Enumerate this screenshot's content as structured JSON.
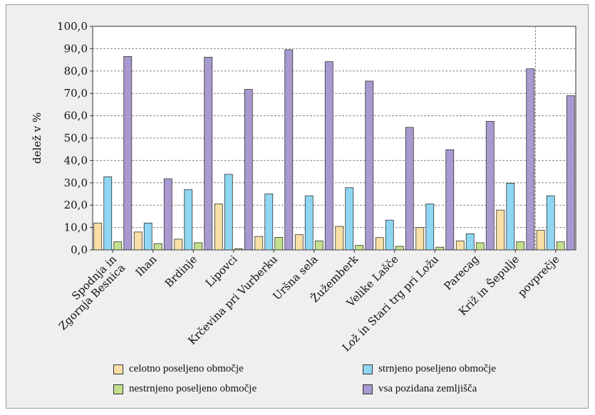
{
  "chart_data": {
    "type": "bar",
    "title": "",
    "xlabel": "",
    "ylabel": "delež v %",
    "ylim": [
      0,
      100
    ],
    "yticks": [
      "0,0",
      "10,0",
      "20,0",
      "30,0",
      "40,0",
      "50,0",
      "60,0",
      "70,0",
      "80,0",
      "90,0",
      "100,0"
    ],
    "grid": true,
    "legend_position": "bottom",
    "categories": [
      "Spodnja in\nZgornja Besnica",
      "Ihan",
      "Brdinje",
      "Lipovci",
      "Krčevina pri Vurberku",
      "Uršna sela",
      "Žužemberk",
      "Velike Lašče",
      "Lož in Stari trg pri Ložu",
      "Parecag",
      "Križ in Šepulje",
      "povprečje"
    ],
    "series": [
      {
        "name": "celotno poseljeno območje",
        "color": "#f7dfa6",
        "values": [
          12.0,
          8.0,
          4.8,
          20.5,
          6.0,
          6.8,
          10.5,
          5.5,
          10.0,
          4.0,
          17.8,
          8.8
        ]
      },
      {
        "name": "strnjeno poseljeno območje",
        "color": "#8ed6f2",
        "values": [
          32.7,
          12.0,
          27.0,
          33.8,
          25.0,
          24.2,
          27.8,
          13.3,
          20.5,
          7.2,
          29.8,
          24.2
        ]
      },
      {
        "name": "nestrnjeno poseljeno območje",
        "color": "#c2e08d",
        "values": [
          3.6,
          2.8,
          3.2,
          0.5,
          5.6,
          4.0,
          2.0,
          1.6,
          1.2,
          3.2,
          3.6,
          3.6
        ]
      },
      {
        "name": "vsa pozidana zemljišča",
        "color": "#a89ad0",
        "values": [
          86.5,
          31.8,
          86.2,
          71.8,
          89.5,
          84.2,
          75.5,
          54.8,
          44.8,
          57.5,
          81.0,
          69.0
        ]
      }
    ]
  },
  "colors": {
    "frame_bg": "#efefef",
    "plot_bg": "#ffffff",
    "grid": "#888888"
  }
}
